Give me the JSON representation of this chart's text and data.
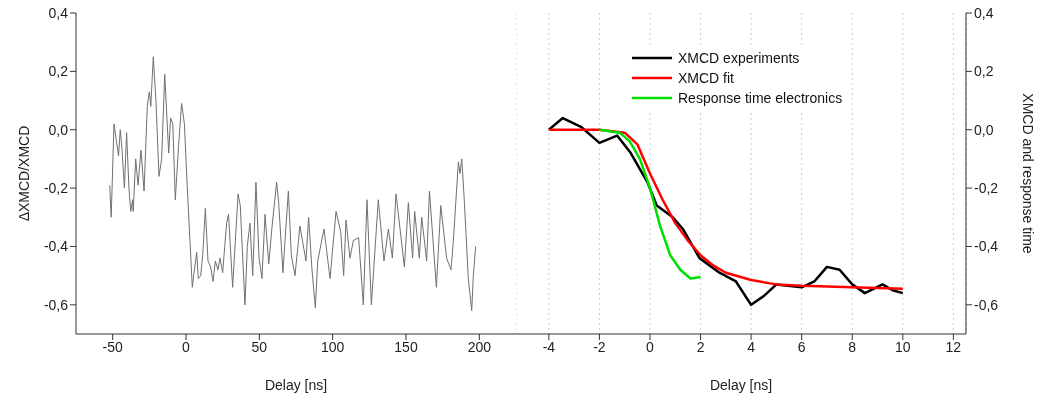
{
  "chart_data": [
    {
      "type": "line",
      "xlabel": "Delay [ns]",
      "ylabel": "ΔXMCD/XMCD",
      "xlim": [
        -75,
        225
      ],
      "xticks": [
        -50,
        0,
        50,
        100,
        150,
        200
      ],
      "ylim": [
        -0.7,
        0.4
      ],
      "yticks": [
        {
          "value": -0.6,
          "label": "-0,6"
        },
        {
          "value": -0.4,
          "label": "-0,4"
        },
        {
          "value": -0.2,
          "label": "-0,2"
        },
        {
          "value": 0,
          "label": "0,0"
        },
        {
          "value": 0.2,
          "label": "0,2"
        },
        {
          "value": 0.4,
          "label": "0,4"
        }
      ],
      "grid": false,
      "legend": false,
      "marker": "none",
      "line_style": "solid",
      "series": [
        {
          "color": "#707070",
          "x": [
            -52,
            -51,
            -49.1,
            -46,
            -44.8,
            -43.6,
            -42,
            -40.5,
            -38.9,
            -37.7,
            -36.4,
            -36,
            -34.3,
            -32.7,
            -30.7,
            -28.6,
            -26.4,
            -25,
            -24,
            -22.3,
            -20.5,
            -18.4,
            -16.6,
            -14.5,
            -11.8,
            -10.5,
            -9,
            -7.3,
            -5,
            -3,
            -1.1,
            0.9,
            2.7,
            4.3,
            5.5,
            7.3,
            8.4,
            10,
            11.4,
            13.2,
            15,
            16.8,
            18.4,
            20,
            21.8,
            23.2,
            25,
            26.4,
            27.7,
            29,
            31.8,
            35.5,
            37,
            40.2,
            41.8,
            43.6,
            45.5,
            47.7,
            49.8,
            51.8,
            53.9,
            56.4,
            58.9,
            61.8,
            63.2,
            66.1,
            67.5,
            69.8,
            71.8,
            74.3,
            77.7,
            81.8,
            83.6,
            85.9,
            88.2,
            89.8,
            94.1,
            98.2,
            102.3,
            105.5,
            107.5,
            109.1,
            111.8,
            114.1,
            117.7,
            120.9,
            123.4,
            126.4,
            131.1,
            135,
            138,
            140.7,
            143.2,
            148.9,
            151.6,
            154.5,
            155.9,
            159.1,
            160.7,
            164.1,
            166,
            170.7,
            173.7,
            177.7,
            180.7,
            182.3,
            185.7,
            186.8,
            188,
            189.5,
            192.5,
            194.8,
            195.9,
            197.5
          ],
          "values": [
            -0.19,
            -0.3,
            0.02,
            -0.09,
            0,
            -0.07,
            -0.2,
            -0.01,
            -0.2,
            -0.28,
            -0.24,
            -0.28,
            -0.1,
            -0.19,
            -0.07,
            -0.21,
            0.08,
            0.13,
            0.08,
            0.25,
            0.1,
            -0.16,
            -0.1,
            0.19,
            -0.08,
            0.04,
            0.02,
            -0.24,
            -0.05,
            0.09,
            0.02,
            -0.2,
            -0.38,
            -0.54,
            -0.49,
            -0.42,
            -0.51,
            -0.5,
            -0.43,
            -0.27,
            -0.45,
            -0.47,
            -0.52,
            -0.45,
            -0.48,
            -0.44,
            -0.49,
            -0.4,
            -0.32,
            -0.29,
            -0.54,
            -0.22,
            -0.26,
            -0.6,
            -0.4,
            -0.32,
            -0.5,
            -0.18,
            -0.44,
            -0.51,
            -0.29,
            -0.46,
            -0.32,
            -0.18,
            -0.25,
            -0.49,
            -0.38,
            -0.21,
            -0.43,
            -0.5,
            -0.33,
            -0.45,
            -0.3,
            -0.48,
            -0.61,
            -0.45,
            -0.34,
            -0.51,
            -0.28,
            -0.35,
            -0.5,
            -0.31,
            -0.44,
            -0.38,
            -0.37,
            -0.6,
            -0.24,
            -0.6,
            -0.24,
            -0.45,
            -0.34,
            -0.44,
            -0.22,
            -0.47,
            -0.25,
            -0.44,
            -0.28,
            -0.44,
            -0.3,
            -0.45,
            -0.21,
            -0.54,
            -0.26,
            -0.44,
            -0.48,
            -0.38,
            -0.11,
            -0.15,
            -0.1,
            -0.22,
            -0.51,
            -0.62,
            -0.5,
            -0.4
          ]
        }
      ]
    },
    {
      "type": "line",
      "xlabel": "Delay [ns]",
      "y2label": "XMCD and response time",
      "xlim": [
        -5.3,
        12.5
      ],
      "xticks": [
        -4,
        -2,
        0,
        2,
        4,
        6,
        8,
        10,
        12
      ],
      "y2lim": [
        -0.7,
        0.4
      ],
      "y2ticks": [
        {
          "value": -0.6,
          "label": "-0,6"
        },
        {
          "value": -0.4,
          "label": "-0,4"
        },
        {
          "value": -0.2,
          "label": "-0,2"
        },
        {
          "value": 0,
          "label": "0,0"
        },
        {
          "value": 0.2,
          "label": "0,2"
        },
        {
          "value": 0.4,
          "label": "0,4"
        }
      ],
      "grid": "x",
      "legend": "top right",
      "marker": "none",
      "line_style": "solid",
      "series": [
        {
          "name": "XMCD experiments",
          "color": "#000000",
          "axis": "y2",
          "x": [
            -4,
            -3.45,
            -2.73,
            -2,
            -1.3,
            -0.76,
            -0.1,
            0.27,
            0.9,
            1.3,
            1.96,
            2.75,
            3.4,
            4,
            4.5,
            5,
            6,
            6.5,
            7,
            7.5,
            8,
            8.5,
            9.2,
            9.6,
            10
          ],
          "values": [
            0,
            0.04,
            0.01,
            -0.045,
            -0.02,
            -0.08,
            -0.18,
            -0.26,
            -0.3,
            -0.34,
            -0.44,
            -0.49,
            -0.52,
            -0.6,
            -0.57,
            -0.53,
            -0.54,
            -0.52,
            -0.47,
            -0.48,
            -0.53,
            -0.56,
            -0.53,
            -0.55,
            -0.56
          ]
        },
        {
          "name": "XMCD fit",
          "color": "#ff0000",
          "axis": "y2",
          "x": [
            -4,
            -2,
            -1,
            -0.5,
            0,
            0.5,
            1,
            1.5,
            2,
            2.5,
            3,
            4,
            5,
            6,
            8,
            10
          ],
          "values": [
            0,
            0,
            -0.01,
            -0.05,
            -0.15,
            -0.24,
            -0.32,
            -0.38,
            -0.43,
            -0.465,
            -0.49,
            -0.515,
            -0.53,
            -0.535,
            -0.54,
            -0.545
          ]
        },
        {
          "name": "Response time electronics",
          "color": "#00e000",
          "axis": "y2",
          "x": [
            -2,
            -1.2,
            -0.8,
            -0.4,
            0,
            0.4,
            0.8,
            1.2,
            1.6,
            2
          ],
          "values": [
            0,
            -0.01,
            -0.04,
            -0.1,
            -0.2,
            -0.33,
            -0.43,
            -0.48,
            -0.51,
            -0.505
          ]
        }
      ]
    }
  ]
}
